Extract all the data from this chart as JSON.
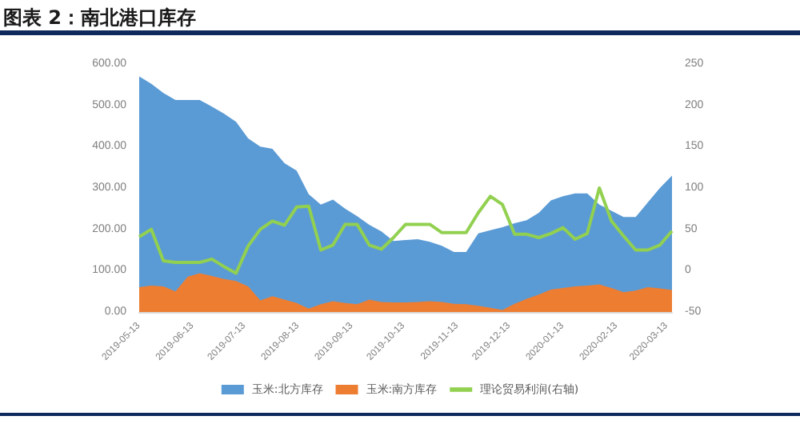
{
  "chart_data": {
    "type": "area",
    "title": "图表 2：南北港口库存",
    "x": [
      "2019-05-13",
      "2019-05-20",
      "2019-05-27",
      "2019-06-03",
      "2019-06-10",
      "2019-06-17",
      "2019-06-24",
      "2019-07-01",
      "2019-07-08",
      "2019-07-15",
      "2019-07-22",
      "2019-07-29",
      "2019-08-05",
      "2019-08-12",
      "2019-08-19",
      "2019-08-26",
      "2019-09-02",
      "2019-09-09",
      "2019-09-16",
      "2019-09-23",
      "2019-09-30",
      "2019-10-07",
      "2019-10-14",
      "2019-10-21",
      "2019-10-28",
      "2019-11-04",
      "2019-11-11",
      "2019-11-18",
      "2019-11-25",
      "2019-12-02",
      "2019-12-09",
      "2019-12-16",
      "2019-12-23",
      "2019-12-30",
      "2020-01-06",
      "2020-01-13",
      "2020-01-20",
      "2020-01-27",
      "2020-02-03",
      "2020-02-10",
      "2020-02-17",
      "2020-02-24",
      "2020-03-02",
      "2020-03-09",
      "2020-03-16"
    ],
    "series": [
      {
        "name": "玉米:北方库存",
        "color": "#5b9bd5",
        "values": [
          570,
          552,
          530,
          513,
          513,
          513,
          497,
          480,
          460,
          420,
          400,
          395,
          360,
          342,
          285,
          260,
          272,
          250,
          232,
          211,
          195,
          172,
          174,
          176,
          170,
          160,
          145,
          145,
          190,
          198,
          205,
          215,
          222,
          240,
          270,
          280,
          287,
          287,
          260,
          245,
          230,
          230,
          265,
          300,
          330
        ]
      },
      {
        "name": "玉米:南方库存",
        "color": "#ed7d31",
        "values": [
          60,
          64,
          62,
          50,
          85,
          94,
          87,
          80,
          75,
          62,
          28,
          38,
          30,
          22,
          8,
          19,
          26,
          22,
          19,
          30,
          24,
          23,
          23,
          24,
          26,
          24,
          20,
          19,
          15,
          10,
          5,
          20,
          32,
          42,
          54,
          58,
          62,
          64,
          67,
          58,
          48,
          52,
          60,
          57,
          53
        ]
      },
      {
        "name": "理论贸易利润(右轴)",
        "type": "line",
        "axis": "y2",
        "color": "#92d050",
        "values": [
          41,
          50,
          12,
          10,
          10,
          10,
          14,
          5,
          -3,
          30,
          50,
          60,
          55,
          77,
          78,
          25,
          31,
          56,
          56,
          31,
          26,
          40,
          56,
          56,
          56,
          46,
          46,
          46,
          70,
          90,
          80,
          44,
          44,
          40,
          45,
          52,
          38,
          45,
          100,
          60,
          42,
          25,
          25,
          31,
          48
        ]
      }
    ],
    "xlim": [
      "2019-05-13",
      "2020-03-16"
    ],
    "xticks": [
      "2019-05-13",
      "2019-06-13",
      "2019-07-13",
      "2019-08-13",
      "2019-09-13",
      "2019-10-13",
      "2019-11-13",
      "2019-12-13",
      "2020-01-13",
      "2020-02-13",
      "2020-03-13"
    ],
    "ylim": [
      0,
      600
    ],
    "yticks": [
      {
        "value": 0,
        "label": "0.00"
      },
      {
        "value": 100,
        "label": "100.00"
      },
      {
        "value": 200,
        "label": "200.00"
      },
      {
        "value": 300,
        "label": "300.00"
      },
      {
        "value": 400,
        "label": "400.00"
      },
      {
        "value": 500,
        "label": "500.00"
      },
      {
        "value": 600,
        "label": "600.00"
      }
    ],
    "y2lim": [
      -50,
      250
    ],
    "y2ticks": [
      -50,
      0,
      50,
      100,
      150,
      200,
      250
    ],
    "legend": "bottom",
    "grid": false,
    "marker": "none",
    "line_style": "solid"
  }
}
